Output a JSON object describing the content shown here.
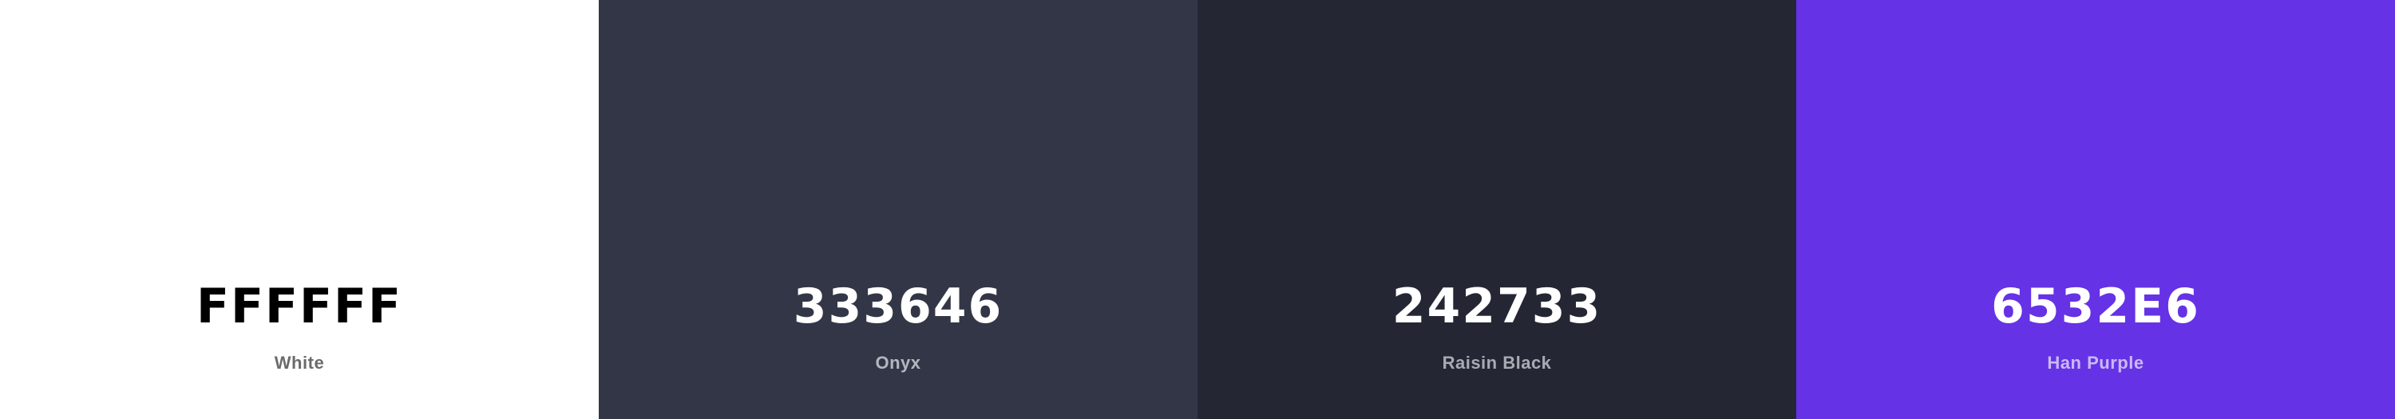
{
  "swatches": [
    {
      "code": "FFFFFF",
      "name": "White",
      "color": "#FFFFFF"
    },
    {
      "code": "333646",
      "name": "Onyx",
      "color": "#333646"
    },
    {
      "code": "242733",
      "name": "Raisin Black",
      "color": "#242733"
    },
    {
      "code": "6532E6",
      "name": "Han Purple",
      "color": "#6532E6"
    }
  ]
}
